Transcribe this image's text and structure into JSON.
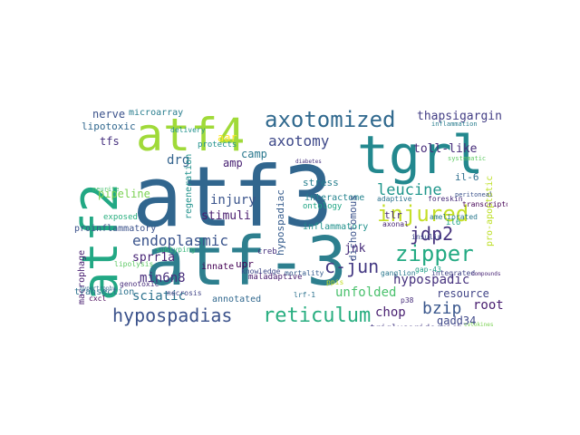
{
  "word_cloud": {
    "words": [
      {
        "text": "atf3",
        "color": "#31668e"
      },
      {
        "text": "atf-3",
        "color": "#2d7f8e"
      },
      {
        "text": "tgrl",
        "color": "#23888e"
      },
      {
        "text": "atf2",
        "color": "#22a884"
      },
      {
        "text": "atf4",
        "color": "#a0da39"
      },
      {
        "text": "axotomized",
        "color": "#30698e"
      },
      {
        "text": "injured",
        "color": "#c5df28"
      },
      {
        "text": "leucine",
        "color": "#1f968b"
      },
      {
        "text": "zipper",
        "color": "#24aa83"
      },
      {
        "text": "reticulum",
        "color": "#28ae80"
      },
      {
        "text": "hypospadias",
        "color": "#3b528b"
      },
      {
        "text": "endoplasmic",
        "color": "#3a548c"
      },
      {
        "text": "axotomy",
        "color": "#3e4989"
      },
      {
        "text": "toll-like",
        "color": "#472c7a"
      },
      {
        "text": "thapsigargin",
        "color": "#433e85"
      },
      {
        "text": "jdp2",
        "color": "#46337e"
      },
      {
        "text": "c-jun",
        "color": "#443983"
      },
      {
        "text": "bzip",
        "color": "#39568c"
      },
      {
        "text": "chop",
        "color": "#481f70"
      },
      {
        "text": "hypospadic",
        "color": "#46327e"
      },
      {
        "text": "sprr1a",
        "color": "#482576"
      },
      {
        "text": "min6n8",
        "color": "#472d7b"
      },
      {
        "text": "sciatic",
        "color": "#2c728e"
      },
      {
        "text": "unfolded",
        "color": "#4ac16d"
      },
      {
        "text": "resource",
        "color": "#414487"
      },
      {
        "text": "root",
        "color": "#481d6f"
      },
      {
        "text": "gadd34",
        "color": "#3f4889"
      },
      {
        "text": "nerve",
        "color": "#3b528b"
      },
      {
        "text": "lipotoxic",
        "color": "#31688e"
      },
      {
        "text": "tfs",
        "color": "#46307e"
      },
      {
        "text": "drg",
        "color": "#33638d"
      },
      {
        "text": "camp",
        "color": "#2a788e"
      },
      {
        "text": "amp",
        "color": "#482173"
      },
      {
        "text": "aar",
        "color": "#fde725"
      },
      {
        "text": "injury",
        "color": "#3a548c"
      },
      {
        "text": "stimuli",
        "color": "#481b6d"
      },
      {
        "text": "pipeline",
        "color": "#7ad151"
      },
      {
        "text": "regeneration",
        "color": "#21918c"
      },
      {
        "text": "stress",
        "color": "#277f8e"
      },
      {
        "text": "interactome",
        "color": "#25848e"
      },
      {
        "text": "ontology",
        "color": "#21a685"
      },
      {
        "text": "dichotomous",
        "color": "#3b528b"
      },
      {
        "text": "jnk",
        "color": "#472c7a"
      },
      {
        "text": "tlr",
        "color": "#482878"
      },
      {
        "text": "il-6",
        "color": "#2e6f8e"
      },
      {
        "text": "pro-apoptotic",
        "color": "#bddf26"
      },
      {
        "text": "transcriptome",
        "color": "#440154"
      },
      {
        "text": "macrophage",
        "color": "#481f70"
      },
      {
        "text": "proinflammatory",
        "color": "#3b528b"
      },
      {
        "text": "exposed",
        "color": "#29af7f"
      },
      {
        "text": "lipolysis",
        "color": "#5cc863"
      },
      {
        "text": "subtyping",
        "color": "#35b779"
      },
      {
        "text": "upr",
        "color": "#440154"
      },
      {
        "text": "maladaptive",
        "color": "#481b6d"
      },
      {
        "text": "inflammatory",
        "color": "#21918c"
      },
      {
        "text": "annotated",
        "color": "#31688e"
      },
      {
        "text": "triglyceride-rich",
        "color": "#443983"
      },
      {
        "text": "hypospadiac",
        "color": "#365c8d"
      },
      {
        "text": "microarray",
        "color": "#287d8e"
      },
      {
        "text": "delivery",
        "color": "#21918c"
      },
      {
        "text": "innate",
        "color": "#440154"
      },
      {
        "text": "axonal",
        "color": "#482475"
      },
      {
        "text": "adaptive",
        "color": "#2c728e"
      },
      {
        "text": "creb",
        "color": "#46307e"
      },
      {
        "text": "il6",
        "color": "#21a685"
      },
      {
        "text": "ameliorated",
        "color": "#2a788e"
      },
      {
        "text": "foreskin",
        "color": "#472c7a"
      },
      {
        "text": "integrated",
        "color": "#414487"
      },
      {
        "text": "insulin",
        "color": "#3e4989"
      },
      {
        "text": "mortality",
        "color": "#365c8d"
      },
      {
        "text": "transection",
        "color": "#2c728e"
      },
      {
        "text": "necrosis",
        "color": "#414487"
      },
      {
        "text": "genotoxic",
        "color": "#472d7b"
      },
      {
        "text": "cxcl",
        "color": "#440154"
      },
      {
        "text": "protects",
        "color": "#21918c"
      },
      {
        "text": "gap-43",
        "color": "#1fa088"
      },
      {
        "text": "ppis",
        "color": "#c2df23"
      },
      {
        "text": "knowledge",
        "color": "#3e4989"
      },
      {
        "text": "lrf-1",
        "color": "#2c728e"
      },
      {
        "text": "p38",
        "color": "#472d7b"
      },
      {
        "text": "hypertrophy",
        "color": "#31688e"
      },
      {
        "text": "neurite",
        "color": "#44bf70"
      },
      {
        "text": "ganglion",
        "color": "#2a788e"
      },
      {
        "text": "inflammation",
        "color": "#287d8e"
      },
      {
        "text": "systematic",
        "color": "#5ec962"
      },
      {
        "text": "compounds",
        "color": "#482475"
      },
      {
        "text": "peritoneal",
        "color": "#3b528b"
      },
      {
        "text": "cytokines",
        "color": "#7ad151"
      },
      {
        "text": "diabetes",
        "color": "#46307e"
      }
    ]
  }
}
